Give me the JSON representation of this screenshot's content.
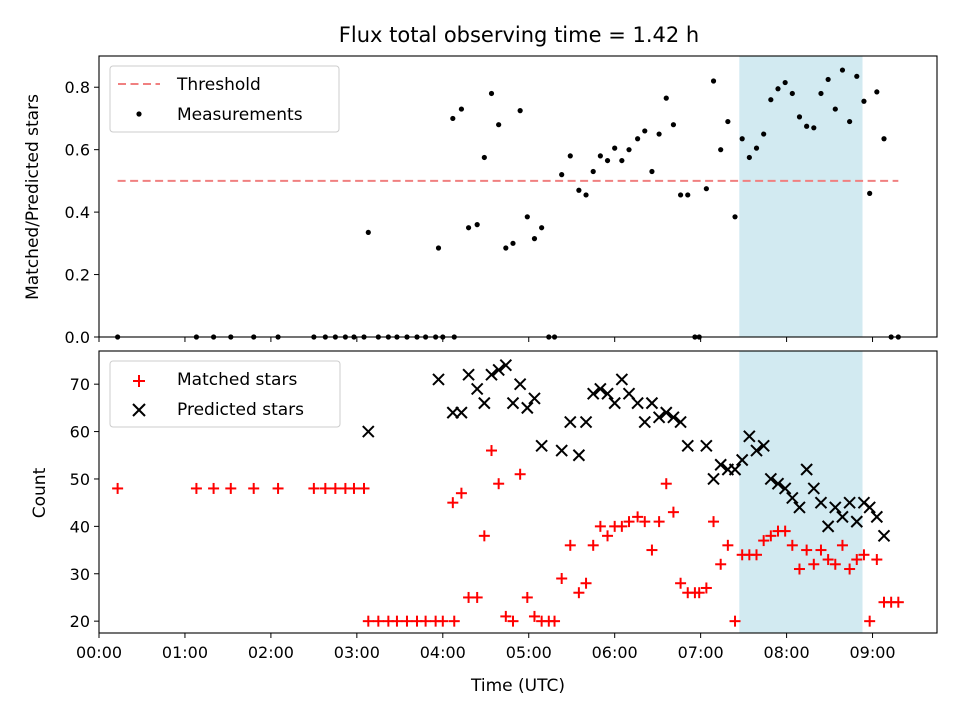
{
  "figure": {
    "title": "Flux total observing time = 1.42 h",
    "highlight_color": "#add8e6"
  },
  "chart_data": [
    {
      "type": "scatter",
      "ylabel": "Matched/Predicted stars",
      "xlim": [
        "00:00",
        "09:45"
      ],
      "ylim": [
        0,
        0.9
      ],
      "yticks": [
        0.0,
        0.2,
        0.4,
        0.6,
        0.8
      ],
      "legend": {
        "placement": "top-left",
        "entries": [
          "Threshold",
          "Measurements"
        ]
      },
      "highlight": {
        "x": [
          "07:27",
          "08:53"
        ]
      },
      "threshold": {
        "name": "Threshold",
        "value": 0.5,
        "x": [
          "00:13",
          "09:18"
        ],
        "color": "#f08080"
      },
      "series": [
        {
          "name": "Measurements",
          "marker": "dot",
          "color": "#000000",
          "points": [
            [
              "00:13",
              0.0
            ],
            [
              "01:08",
              0.0
            ],
            [
              "01:20",
              0.0
            ],
            [
              "01:32",
              0.0
            ],
            [
              "01:48",
              0.0
            ],
            [
              "02:05",
              0.0
            ],
            [
              "02:30",
              0.0
            ],
            [
              "02:38",
              0.0
            ],
            [
              "02:45",
              0.0
            ],
            [
              "02:52",
              0.0
            ],
            [
              "02:58",
              0.0
            ],
            [
              "03:05",
              0.0
            ],
            [
              "03:15",
              0.0
            ],
            [
              "03:22",
              0.0
            ],
            [
              "03:28",
              0.0
            ],
            [
              "03:35",
              0.0
            ],
            [
              "03:42",
              0.0
            ],
            [
              "03:48",
              0.0
            ],
            [
              "03:55",
              0.0
            ],
            [
              "04:00",
              0.0
            ],
            [
              "04:08",
              0.0
            ],
            [
              "03:08",
              0.335
            ],
            [
              "03:57",
              0.285
            ],
            [
              "04:07",
              0.7
            ],
            [
              "04:13",
              0.73
            ],
            [
              "04:18",
              0.35
            ],
            [
              "04:24",
              0.36
            ],
            [
              "04:29",
              0.575
            ],
            [
              "04:34",
              0.78
            ],
            [
              "04:39",
              0.68
            ],
            [
              "04:44",
              0.285
            ],
            [
              "04:49",
              0.3
            ],
            [
              "04:54",
              0.725
            ],
            [
              "04:59",
              0.385
            ],
            [
              "05:04",
              0.315
            ],
            [
              "05:09",
              0.35
            ],
            [
              "05:14",
              0.0
            ],
            [
              "05:18",
              0.0
            ],
            [
              "05:23",
              0.52
            ],
            [
              "05:29",
              0.58
            ],
            [
              "05:35",
              0.47
            ],
            [
              "05:40",
              0.455
            ],
            [
              "05:45",
              0.53
            ],
            [
              "05:50",
              0.58
            ],
            [
              "05:55",
              0.565
            ],
            [
              "06:00",
              0.605
            ],
            [
              "06:05",
              0.565
            ],
            [
              "06:10",
              0.6
            ],
            [
              "06:16",
              0.635
            ],
            [
              "06:21",
              0.66
            ],
            [
              "06:26",
              0.53
            ],
            [
              "06:31",
              0.65
            ],
            [
              "06:36",
              0.765
            ],
            [
              "06:41",
              0.68
            ],
            [
              "06:46",
              0.455
            ],
            [
              "06:51",
              0.455
            ],
            [
              "06:56",
              0.0
            ],
            [
              "06:59",
              0.0
            ],
            [
              "07:04",
              0.475
            ],
            [
              "07:09",
              0.82
            ],
            [
              "07:14",
              0.6
            ],
            [
              "07:19",
              0.69
            ],
            [
              "07:24",
              0.385
            ],
            [
              "07:29",
              0.635
            ],
            [
              "07:34",
              0.575
            ],
            [
              "07:39",
              0.605
            ],
            [
              "07:44",
              0.65
            ],
            [
              "07:49",
              0.76
            ],
            [
              "07:54",
              0.795
            ],
            [
              "07:59",
              0.815
            ],
            [
              "08:04",
              0.78
            ],
            [
              "08:09",
              0.705
            ],
            [
              "08:14",
              0.675
            ],
            [
              "08:19",
              0.67
            ],
            [
              "08:24",
              0.78
            ],
            [
              "08:29",
              0.825
            ],
            [
              "08:34",
              0.73
            ],
            [
              "08:39",
              0.855
            ],
            [
              "08:44",
              0.69
            ],
            [
              "08:49",
              0.835
            ],
            [
              "08:54",
              0.755
            ],
            [
              "08:58",
              0.46
            ],
            [
              "09:03",
              0.785
            ],
            [
              "09:08",
              0.635
            ],
            [
              "09:13",
              0.0
            ],
            [
              "09:18",
              0.0
            ]
          ]
        }
      ]
    },
    {
      "type": "scatter",
      "xlabel": "Time (UTC)",
      "ylabel": "Count",
      "xlim": [
        "00:00",
        "09:45"
      ],
      "ylim": [
        17.5,
        77
      ],
      "xticks": [
        "00:00",
        "01:00",
        "02:00",
        "03:00",
        "04:00",
        "05:00",
        "06:00",
        "07:00",
        "08:00",
        "09:00"
      ],
      "yticks": [
        20,
        30,
        40,
        50,
        60,
        70
      ],
      "legend": {
        "placement": "top-left",
        "entries": [
          "Matched stars",
          "Predicted stars"
        ]
      },
      "highlight": {
        "x": [
          "07:27",
          "08:53"
        ]
      },
      "series": [
        {
          "name": "Matched stars",
          "marker": "plus",
          "color": "#ff0000",
          "points": [
            [
              "00:13",
              48
            ],
            [
              "01:08",
              48
            ],
            [
              "01:20",
              48
            ],
            [
              "01:32",
              48
            ],
            [
              "01:48",
              48
            ],
            [
              "02:05",
              48
            ],
            [
              "02:30",
              48
            ],
            [
              "02:38",
              48
            ],
            [
              "02:45",
              48
            ],
            [
              "02:52",
              48
            ],
            [
              "02:58",
              48
            ],
            [
              "03:05",
              48
            ],
            [
              "03:08",
              20
            ],
            [
              "03:15",
              20
            ],
            [
              "03:22",
              20
            ],
            [
              "03:28",
              20
            ],
            [
              "03:35",
              20
            ],
            [
              "03:42",
              20
            ],
            [
              "03:48",
              20
            ],
            [
              "03:55",
              20
            ],
            [
              "04:00",
              20
            ],
            [
              "04:08",
              20
            ],
            [
              "04:07",
              45
            ],
            [
              "04:13",
              47
            ],
            [
              "04:18",
              25
            ],
            [
              "04:24",
              25
            ],
            [
              "04:29",
              38
            ],
            [
              "04:34",
              56
            ],
            [
              "04:39",
              49
            ],
            [
              "04:44",
              21
            ],
            [
              "04:49",
              20
            ],
            [
              "04:54",
              51
            ],
            [
              "04:59",
              25
            ],
            [
              "05:04",
              21
            ],
            [
              "05:09",
              20
            ],
            [
              "05:14",
              20
            ],
            [
              "05:18",
              20
            ],
            [
              "05:23",
              29
            ],
            [
              "05:29",
              36
            ],
            [
              "05:35",
              26
            ],
            [
              "05:40",
              28
            ],
            [
              "05:45",
              36
            ],
            [
              "05:50",
              40
            ],
            [
              "05:55",
              38
            ],
            [
              "06:00",
              40
            ],
            [
              "06:05",
              40
            ],
            [
              "06:10",
              41
            ],
            [
              "06:16",
              42
            ],
            [
              "06:21",
              41
            ],
            [
              "06:26",
              35
            ],
            [
              "06:31",
              41
            ],
            [
              "06:36",
              49
            ],
            [
              "06:41",
              43
            ],
            [
              "06:46",
              28
            ],
            [
              "06:51",
              26
            ],
            [
              "06:56",
              26
            ],
            [
              "06:59",
              26
            ],
            [
              "07:04",
              27
            ],
            [
              "07:09",
              41
            ],
            [
              "07:14",
              32
            ],
            [
              "07:19",
              36
            ],
            [
              "07:24",
              20
            ],
            [
              "07:29",
              34
            ],
            [
              "07:34",
              34
            ],
            [
              "07:39",
              34
            ],
            [
              "07:44",
              37
            ],
            [
              "07:49",
              38
            ],
            [
              "07:54",
              39
            ],
            [
              "07:59",
              39
            ],
            [
              "08:04",
              36
            ],
            [
              "08:09",
              31
            ],
            [
              "08:14",
              35
            ],
            [
              "08:19",
              32
            ],
            [
              "08:24",
              35
            ],
            [
              "08:29",
              33
            ],
            [
              "08:34",
              32
            ],
            [
              "08:39",
              36
            ],
            [
              "08:44",
              31
            ],
            [
              "08:49",
              33
            ],
            [
              "08:54",
              34
            ],
            [
              "08:58",
              20
            ],
            [
              "09:03",
              33
            ],
            [
              "09:08",
              24
            ],
            [
              "09:13",
              24
            ],
            [
              "09:18",
              24
            ]
          ]
        },
        {
          "name": "Predicted stars",
          "marker": "x",
          "color": "#000000",
          "points": [
            [
              "03:08",
              60
            ],
            [
              "03:57",
              71
            ],
            [
              "04:07",
              64
            ],
            [
              "04:13",
              64
            ],
            [
              "04:18",
              72
            ],
            [
              "04:24",
              69
            ],
            [
              "04:29",
              66
            ],
            [
              "04:34",
              72
            ],
            [
              "04:39",
              73
            ],
            [
              "04:44",
              74
            ],
            [
              "04:49",
              66
            ],
            [
              "04:54",
              70
            ],
            [
              "04:59",
              65
            ],
            [
              "05:04",
              67
            ],
            [
              "05:09",
              57
            ],
            [
              "05:23",
              56
            ],
            [
              "05:29",
              62
            ],
            [
              "05:35",
              55
            ],
            [
              "05:40",
              62
            ],
            [
              "05:45",
              68
            ],
            [
              "05:50",
              69
            ],
            [
              "05:55",
              68
            ],
            [
              "06:00",
              66
            ],
            [
              "06:05",
              71
            ],
            [
              "06:10",
              68
            ],
            [
              "06:16",
              66
            ],
            [
              "06:21",
              62
            ],
            [
              "06:26",
              66
            ],
            [
              "06:31",
              63
            ],
            [
              "06:36",
              64
            ],
            [
              "06:41",
              63
            ],
            [
              "06:46",
              62
            ],
            [
              "06:51",
              57
            ],
            [
              "07:04",
              57
            ],
            [
              "07:09",
              50
            ],
            [
              "07:14",
              53
            ],
            [
              "07:19",
              52
            ],
            [
              "07:24",
              52
            ],
            [
              "07:29",
              54
            ],
            [
              "07:34",
              59
            ],
            [
              "07:39",
              56
            ],
            [
              "07:44",
              57
            ],
            [
              "07:49",
              50
            ],
            [
              "07:54",
              49
            ],
            [
              "07:59",
              48
            ],
            [
              "08:04",
              46
            ],
            [
              "08:09",
              44
            ],
            [
              "08:14",
              52
            ],
            [
              "08:19",
              48
            ],
            [
              "08:24",
              45
            ],
            [
              "08:29",
              40
            ],
            [
              "08:34",
              44
            ],
            [
              "08:39",
              42
            ],
            [
              "08:44",
              45
            ],
            [
              "08:49",
              41
            ],
            [
              "08:54",
              45
            ],
            [
              "08:58",
              44
            ],
            [
              "09:03",
              42
            ],
            [
              "09:08",
              38
            ]
          ]
        }
      ]
    }
  ]
}
